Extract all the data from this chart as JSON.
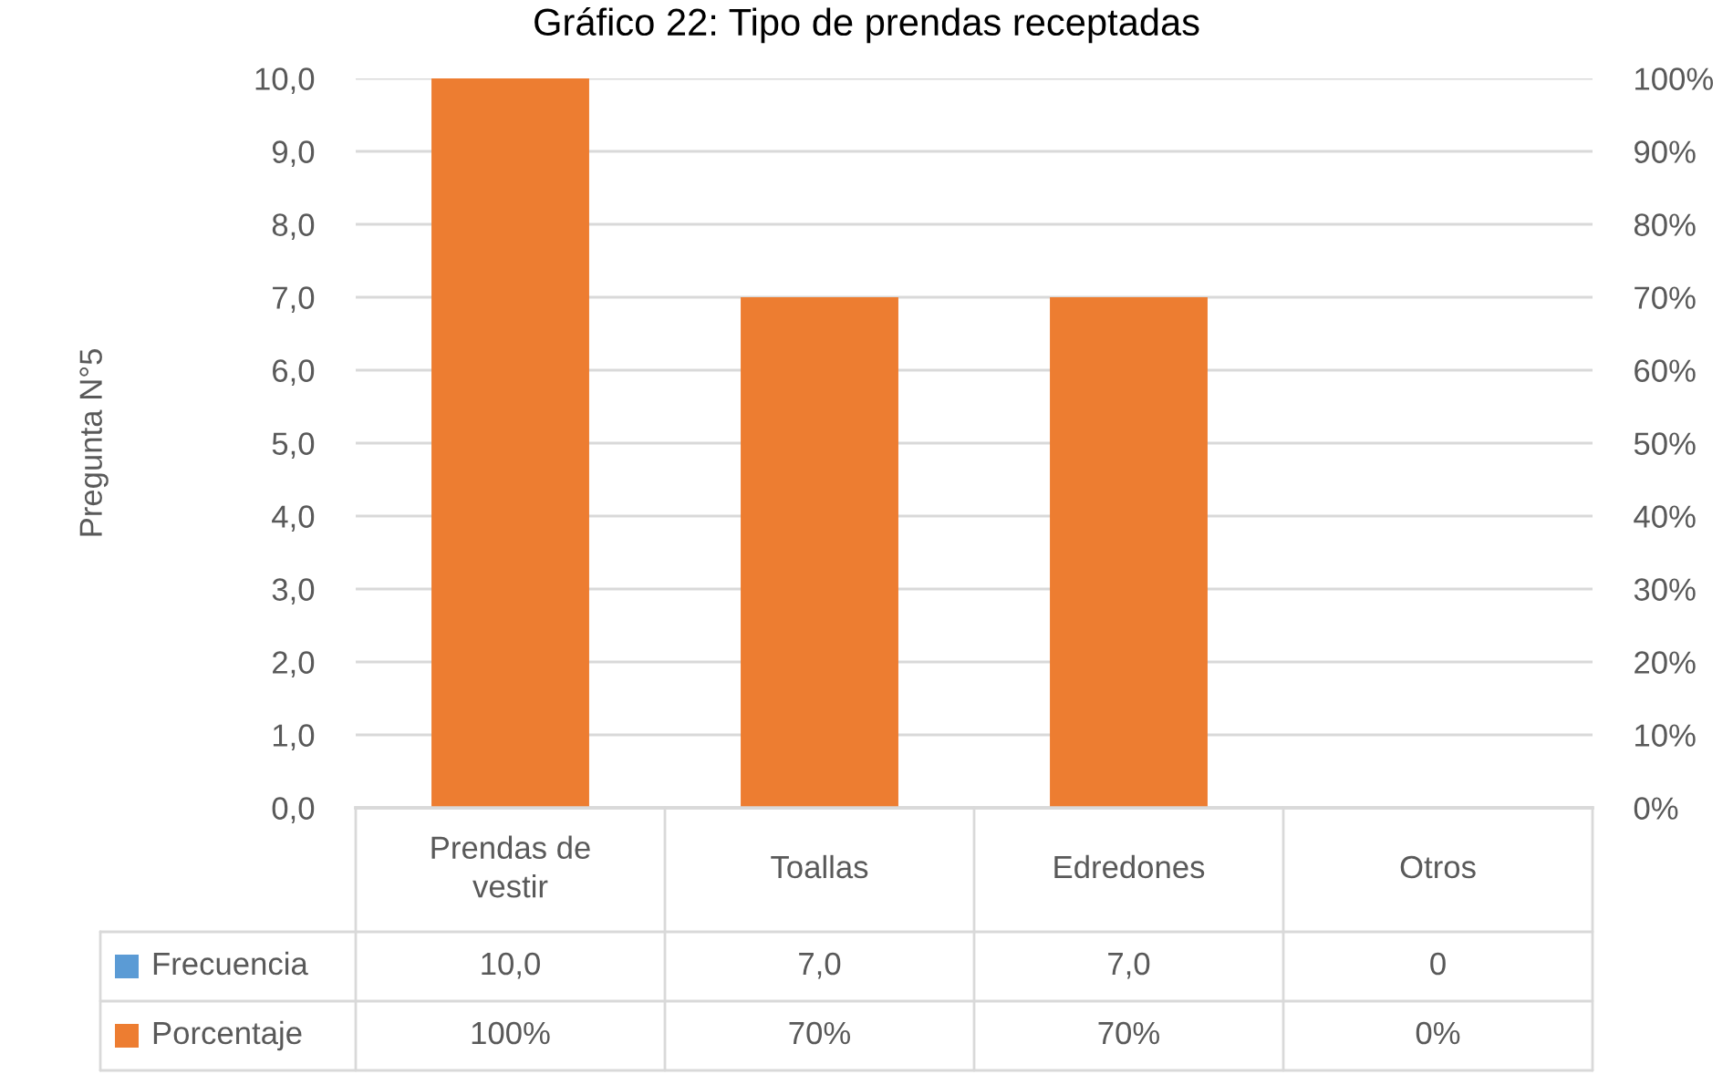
{
  "chart_data": {
    "type": "bar",
    "title": "Gráfico 22: Tipo de prendas receptadas",
    "ylabel": "Pregunta N°5",
    "categories": [
      "Prendas de vestir",
      "Toallas",
      "Edredones",
      "Otros"
    ],
    "series": [
      {
        "name": "Frecuencia",
        "color": "#5b9bd5",
        "values": [
          null,
          null,
          null,
          null
        ],
        "value_labels": [
          "10,0",
          "7,0",
          "7,0",
          "0"
        ]
      },
      {
        "name": "Porcentaje",
        "color": "#ed7d31",
        "axis": "y2",
        "values": [
          100,
          70,
          70,
          0
        ],
        "value_labels": [
          "100%",
          "70%",
          "70%",
          "0%"
        ]
      }
    ],
    "ylim": [
      0,
      10
    ],
    "yticks": [
      {
        "value": 0,
        "label": "0,0"
      },
      {
        "value": 1,
        "label": "1,0"
      },
      {
        "value": 2,
        "label": "2,0"
      },
      {
        "value": 3,
        "label": "3,0"
      },
      {
        "value": 4,
        "label": "4,0"
      },
      {
        "value": 5,
        "label": "5,0"
      },
      {
        "value": 6,
        "label": "6,0"
      },
      {
        "value": 7,
        "label": "7,0"
      },
      {
        "value": 8,
        "label": "8,0"
      },
      {
        "value": 9,
        "label": "9,0"
      },
      {
        "value": 10,
        "label": "10,0"
      }
    ],
    "y2lim": [
      0,
      100
    ],
    "y2ticks": [
      {
        "value": 0,
        "label": "0%"
      },
      {
        "value": 10,
        "label": "10%"
      },
      {
        "value": 20,
        "label": "20%"
      },
      {
        "value": 30,
        "label": "30%"
      },
      {
        "value": 40,
        "label": "40%"
      },
      {
        "value": 50,
        "label": "50%"
      },
      {
        "value": 60,
        "label": "60%"
      },
      {
        "value": 70,
        "label": "70%"
      },
      {
        "value": 80,
        "label": "80%"
      },
      {
        "value": 90,
        "label": "90%"
      },
      {
        "value": 100,
        "label": "100%"
      }
    ],
    "grid": "y"
  }
}
